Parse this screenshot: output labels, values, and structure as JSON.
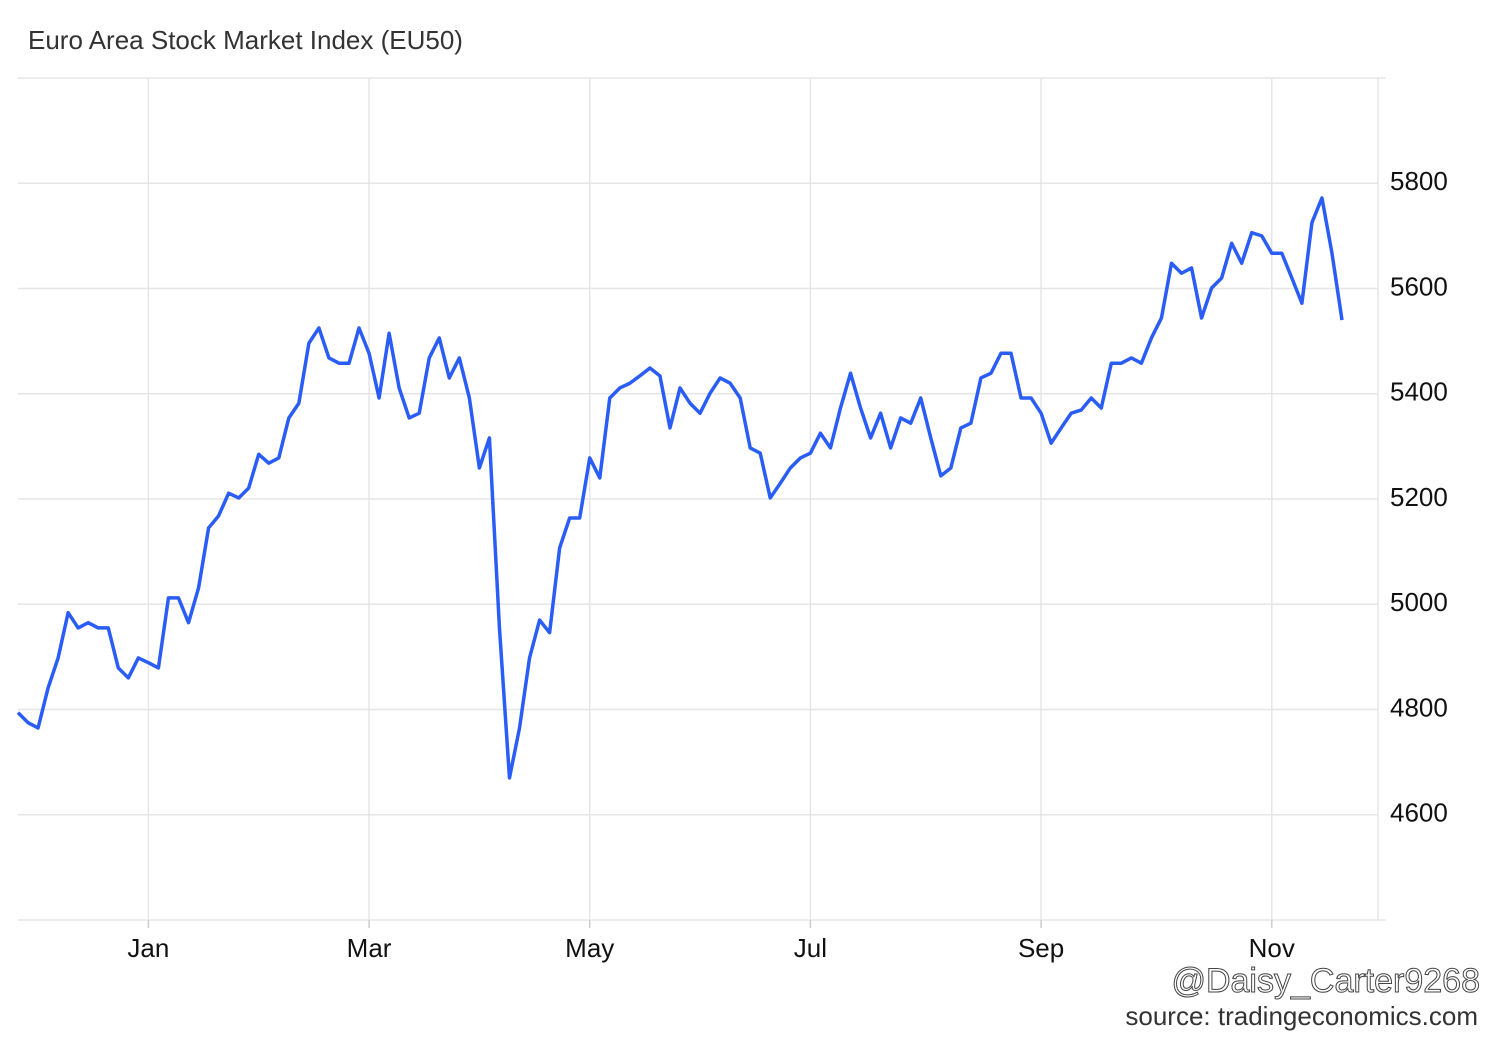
{
  "chart_data": {
    "type": "line",
    "title": "Euro Area Stock Market Index (EU50)",
    "watermark": "@Daisy_Carter9268",
    "source": "source: tradingeconomics.com",
    "categories": [
      null,
      null,
      null,
      null,
      null,
      null,
      null,
      null,
      null,
      null,
      null,
      null,
      null,
      "Jan",
      null,
      null,
      null,
      null,
      null,
      null,
      null,
      null,
      null,
      null,
      null,
      null,
      null,
      null,
      null,
      null,
      null,
      null,
      null,
      null,
      null,
      "Mar",
      null,
      null,
      null,
      null,
      null,
      null,
      null,
      null,
      null,
      null,
      null,
      null,
      null,
      null,
      null,
      null,
      null,
      null,
      null,
      null,
      null,
      "May",
      null,
      null,
      null,
      null,
      null,
      null,
      null,
      null,
      null,
      null,
      null,
      null,
      null,
      null,
      null,
      null,
      null,
      null,
      null,
      null,
      null,
      "Jul",
      null,
      null,
      null,
      null,
      null,
      null,
      null,
      null,
      null,
      null,
      null,
      null,
      null,
      null,
      null,
      null,
      null,
      null,
      null,
      null,
      null,
      null,
      "Sep",
      null,
      null,
      null,
      null,
      null,
      null,
      null,
      null,
      null,
      null,
      null,
      null,
      null,
      null,
      null,
      null,
      null,
      null,
      null,
      null,
      null,
      null,
      "Nov",
      null,
      null,
      null,
      null,
      null,
      null,
      null
    ],
    "series": [
      {
        "name": "EU50",
        "color": "#2a5df5",
        "values": [
          4794,
          4775,
          4765,
          4841,
          4898,
          4984,
          4955,
          4965,
          4955,
          4955,
          4879,
          4860,
          4898,
          4889,
          4879,
          5012,
          5012,
          4965,
          5031,
          5145,
          5168,
          5211,
          5202,
          5221,
          5285,
          5268,
          5278,
          5354,
          5382,
          5496,
          5525,
          5468,
          5458,
          5458,
          5525,
          5477,
          5392,
          5515,
          5411,
          5354,
          5363,
          5468,
          5506,
          5430,
          5468,
          5392,
          5259,
          5316,
          4955,
          4670,
          4765,
          4898,
          4970,
          4946,
          5107,
          5164,
          5164,
          5278,
          5240,
          5392,
          5411,
          5420,
          5434,
          5449,
          5434,
          5335,
          5411,
          5382,
          5363,
          5401,
          5430,
          5420,
          5392,
          5297,
          5287,
          5202,
          5230,
          5259,
          5278,
          5287,
          5325,
          5297,
          5373,
          5439,
          5373,
          5316,
          5363,
          5297,
          5354,
          5344,
          5392,
          5316,
          5244,
          5259,
          5335,
          5344,
          5430,
          5439,
          5477,
          5477,
          5392,
          5392,
          5363,
          5306,
          5335,
          5363,
          5369,
          5392,
          5373,
          5458,
          5458,
          5468,
          5458,
          5506,
          5544,
          5648,
          5629,
          5639,
          5544,
          5601,
          5620,
          5686,
          5648,
          5706,
          5700,
          5667,
          5667,
          5620,
          5572,
          5725,
          5772,
          5667,
          5540
        ]
      }
    ],
    "ylim": [
      4400,
      6000
    ],
    "yticks": [
      4600,
      4800,
      5000,
      5200,
      5400,
      5600,
      5800
    ],
    "grid": true
  }
}
